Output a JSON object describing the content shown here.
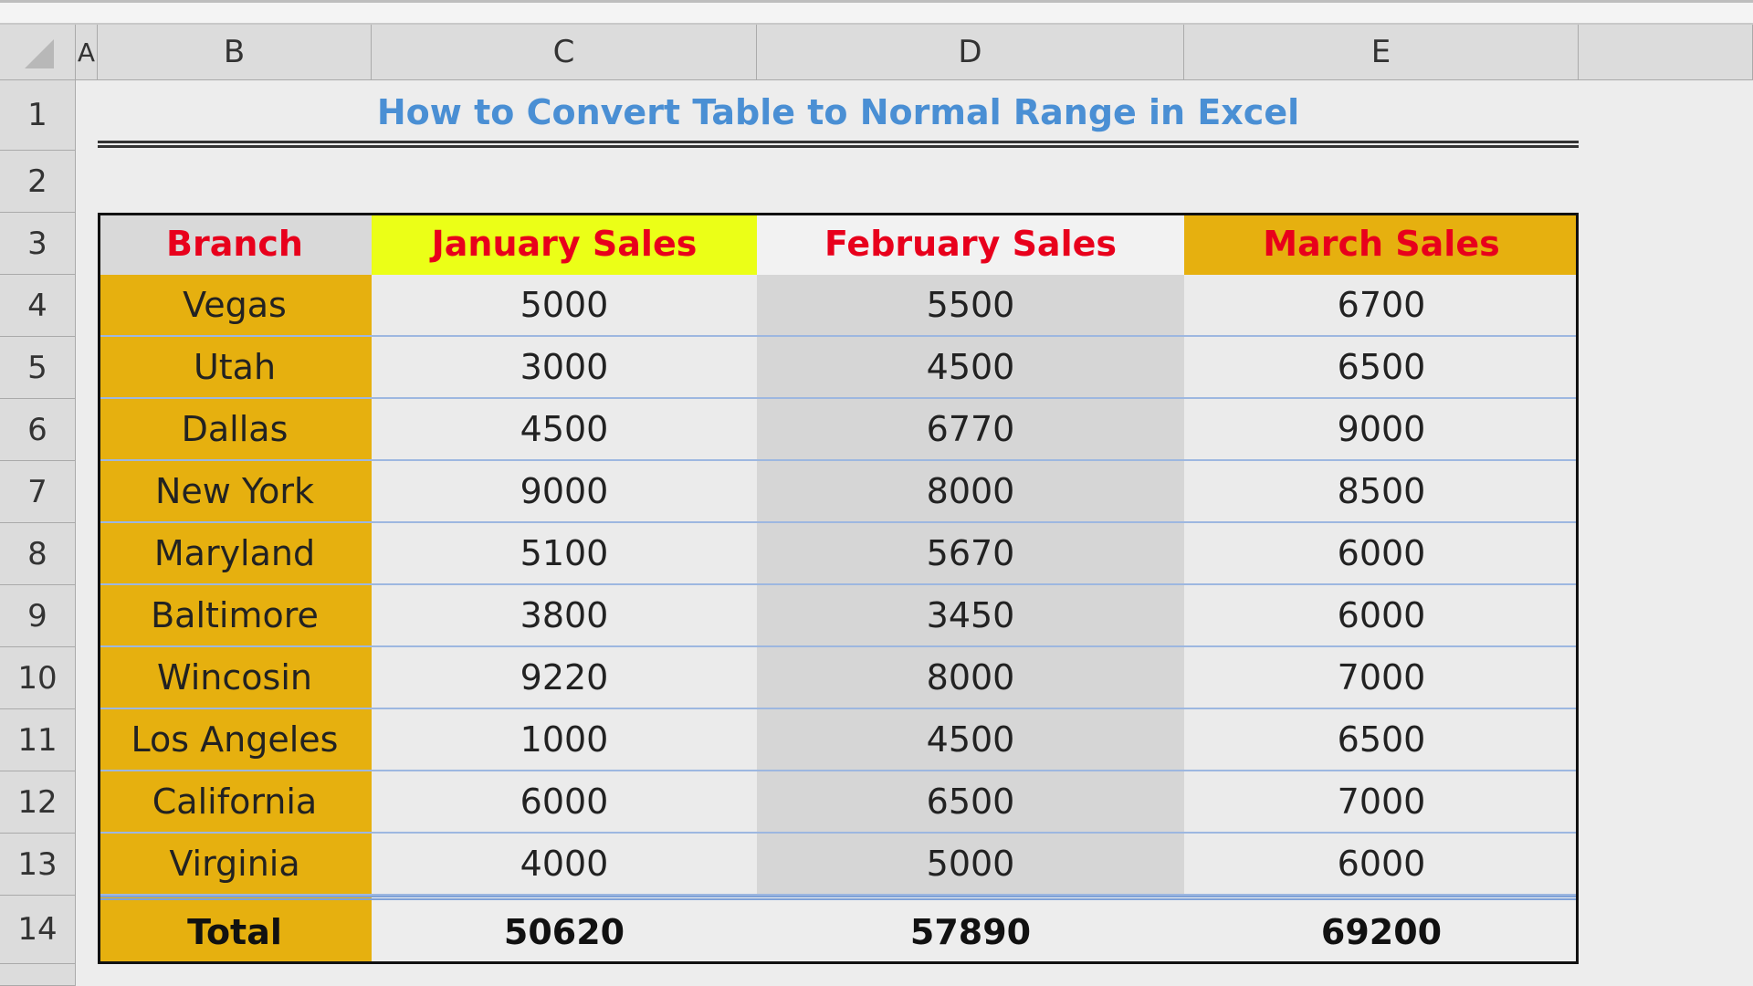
{
  "columns": [
    "A",
    "B",
    "C",
    "D",
    "E"
  ],
  "rows": [
    1,
    2,
    3,
    4,
    5,
    6,
    7,
    8,
    9,
    10,
    11,
    12,
    13,
    14
  ],
  "title": "How to Convert Table to Normal Range in Excel",
  "table": {
    "headers": [
      "Branch",
      "January Sales",
      "February Sales",
      "March Sales"
    ],
    "rows": [
      [
        "Vegas",
        5000,
        5500,
        6700
      ],
      [
        "Utah",
        3000,
        4500,
        6500
      ],
      [
        "Dallas",
        4500,
        6770,
        9000
      ],
      [
        "New York",
        9000,
        8000,
        8500
      ],
      [
        "Maryland",
        5100,
        5670,
        6000
      ],
      [
        "Baltimore",
        3800,
        3450,
        6000
      ],
      [
        "Wincosin",
        9220,
        8000,
        7000
      ],
      [
        "Los Angeles",
        1000,
        4500,
        6500
      ],
      [
        "California",
        6000,
        6500,
        7000
      ],
      [
        "Virginia",
        4000,
        5000,
        6000
      ]
    ],
    "total": [
      "Total",
      50620,
      57890,
      69200
    ]
  }
}
